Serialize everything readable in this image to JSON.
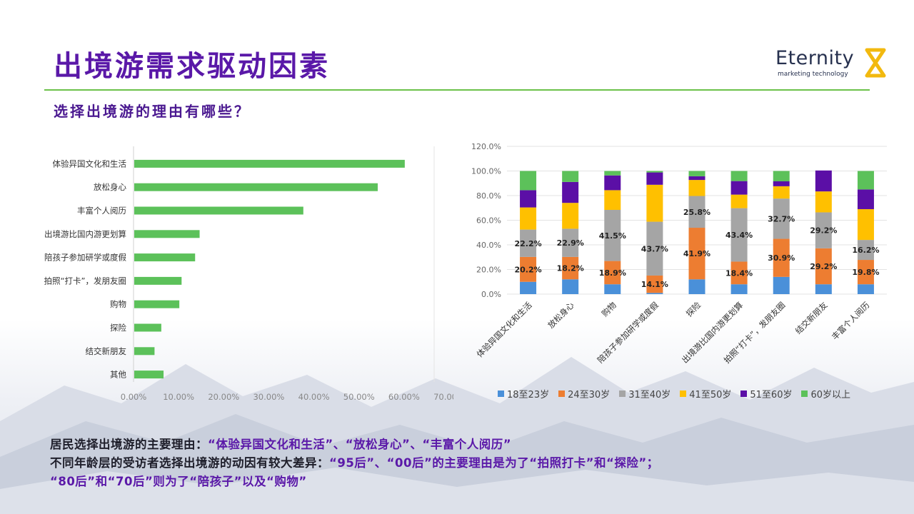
{
  "slide": {
    "title": "出境游需求驱动因素",
    "subtitle": "选择出境游的理由有哪些？"
  },
  "logo": {
    "name": "Eternity",
    "tagline": "marketing technology",
    "accent": "#f2b90f",
    "text_color": "#27314f"
  },
  "colors": {
    "title": "#5a18a8",
    "rule": "#6cc24a",
    "bar": "#5cc15a",
    "highlight": "#5a18a8"
  },
  "chart_data": [
    {
      "type": "bar",
      "orientation": "horizontal",
      "categories": [
        "体验异国文化和生活",
        "放松身心",
        "丰富个人阅历",
        "出境游比国内游更划算",
        "陪孩子参加研学或度假",
        "拍照“打卡”，发朋友圈",
        "购物",
        "探险",
        "结交新朋友",
        "其他"
      ],
      "values": [
        0.6,
        0.54,
        0.375,
        0.145,
        0.135,
        0.105,
        0.1,
        0.06,
        0.045,
        0.065
      ],
      "xlim": [
        0,
        0.7
      ],
      "xticks": [
        "0.00%",
        "10.00%",
        "20.00%",
        "30.00%",
        "40.00%",
        "50.00%",
        "60.00%",
        "70.00%"
      ],
      "grid": false,
      "color": "#5cc15a"
    },
    {
      "type": "bar",
      "stacked": true,
      "categories": [
        "体验异国文化和生活",
        "放松身心",
        "购物",
        "陪孩子参加研学或度假",
        "探险",
        "出境游比国内游更划算",
        "拍照“打卡”，发朋友圈",
        "结交新朋友",
        "丰富个人阅历"
      ],
      "ylim": [
        0,
        1.2
      ],
      "yticks": [
        "0.0%",
        "20.0%",
        "40.0%",
        "60.0%",
        "80.0%",
        "100.0%",
        "120.0%"
      ],
      "grid": true,
      "legend": "bottom",
      "series": [
        {
          "name": "18至23岁",
          "color": "#4a90d9",
          "values": [
            0.1,
            0.12,
            0.08,
            0.01,
            0.12,
            0.08,
            0.14,
            0.08,
            0.08
          ]
        },
        {
          "name": "24至30岁",
          "color": "#ed7d31",
          "values": [
            0.202,
            0.182,
            0.189,
            0.141,
            0.419,
            0.184,
            0.309,
            0.292,
            0.198
          ]
        },
        {
          "name": "31至40岁",
          "color": "#a5a5a5",
          "values": [
            0.222,
            0.229,
            0.415,
            0.437,
            0.258,
            0.434,
            0.327,
            0.292,
            0.162
          ]
        },
        {
          "name": "41至50岁",
          "color": "#ffc000",
          "values": [
            0.18,
            0.21,
            0.16,
            0.3,
            0.13,
            0.11,
            0.1,
            0.17,
            0.25
          ]
        },
        {
          "name": "51至60岁",
          "color": "#5b0fa6",
          "values": [
            0.14,
            0.17,
            0.12,
            0.1,
            0.03,
            0.11,
            0.04,
            0.17,
            0.16
          ]
        },
        {
          "name": "60岁以上",
          "color": "#5cc15a",
          "values": [
            0.156,
            0.089,
            0.036,
            0.012,
            0.043,
            0.082,
            0.084,
            0.0,
            0.15
          ]
        }
      ],
      "data_labels": [
        {
          "category": 0,
          "series": 1,
          "text": "20.2%"
        },
        {
          "category": 0,
          "series": 2,
          "text": "22.2%"
        },
        {
          "category": 1,
          "series": 1,
          "text": "18.2%"
        },
        {
          "category": 1,
          "series": 2,
          "text": "22.9%"
        },
        {
          "category": 2,
          "series": 1,
          "text": "18.9%"
        },
        {
          "category": 2,
          "series": 2,
          "text": "41.5%"
        },
        {
          "category": 3,
          "series": 1,
          "text": "14.1%"
        },
        {
          "category": 3,
          "series": 2,
          "text": "43.7%"
        },
        {
          "category": 4,
          "series": 1,
          "text": "41.9%"
        },
        {
          "category": 4,
          "series": 2,
          "text": "25.8%"
        },
        {
          "category": 5,
          "series": 1,
          "text": "18.4%"
        },
        {
          "category": 5,
          "series": 2,
          "text": "43.4%"
        },
        {
          "category": 6,
          "series": 1,
          "text": "30.9%"
        },
        {
          "category": 6,
          "series": 2,
          "text": "32.7%"
        },
        {
          "category": 7,
          "series": 1,
          "text": "29.2%"
        },
        {
          "category": 7,
          "series": 2,
          "text": "29.2%"
        },
        {
          "category": 8,
          "series": 1,
          "text": "19.8%"
        },
        {
          "category": 8,
          "series": 2,
          "text": "16.2%"
        }
      ]
    }
  ],
  "notes": {
    "line1_lead": "居民选择出境游的主要理由：",
    "line1_highlight": "“体验异国文化和生活”、“放松身心”、“丰富个人阅历”",
    "line2_lead": "不同年龄层的受访者选择出境游的动因有较大差异：",
    "line2_highlight": "“95后”、“00后”的主要理由是为了“拍照打卡”和“探险”；",
    "line3_highlight": "“80后”和“70后”则为了“陪孩子”以及“购物”"
  }
}
